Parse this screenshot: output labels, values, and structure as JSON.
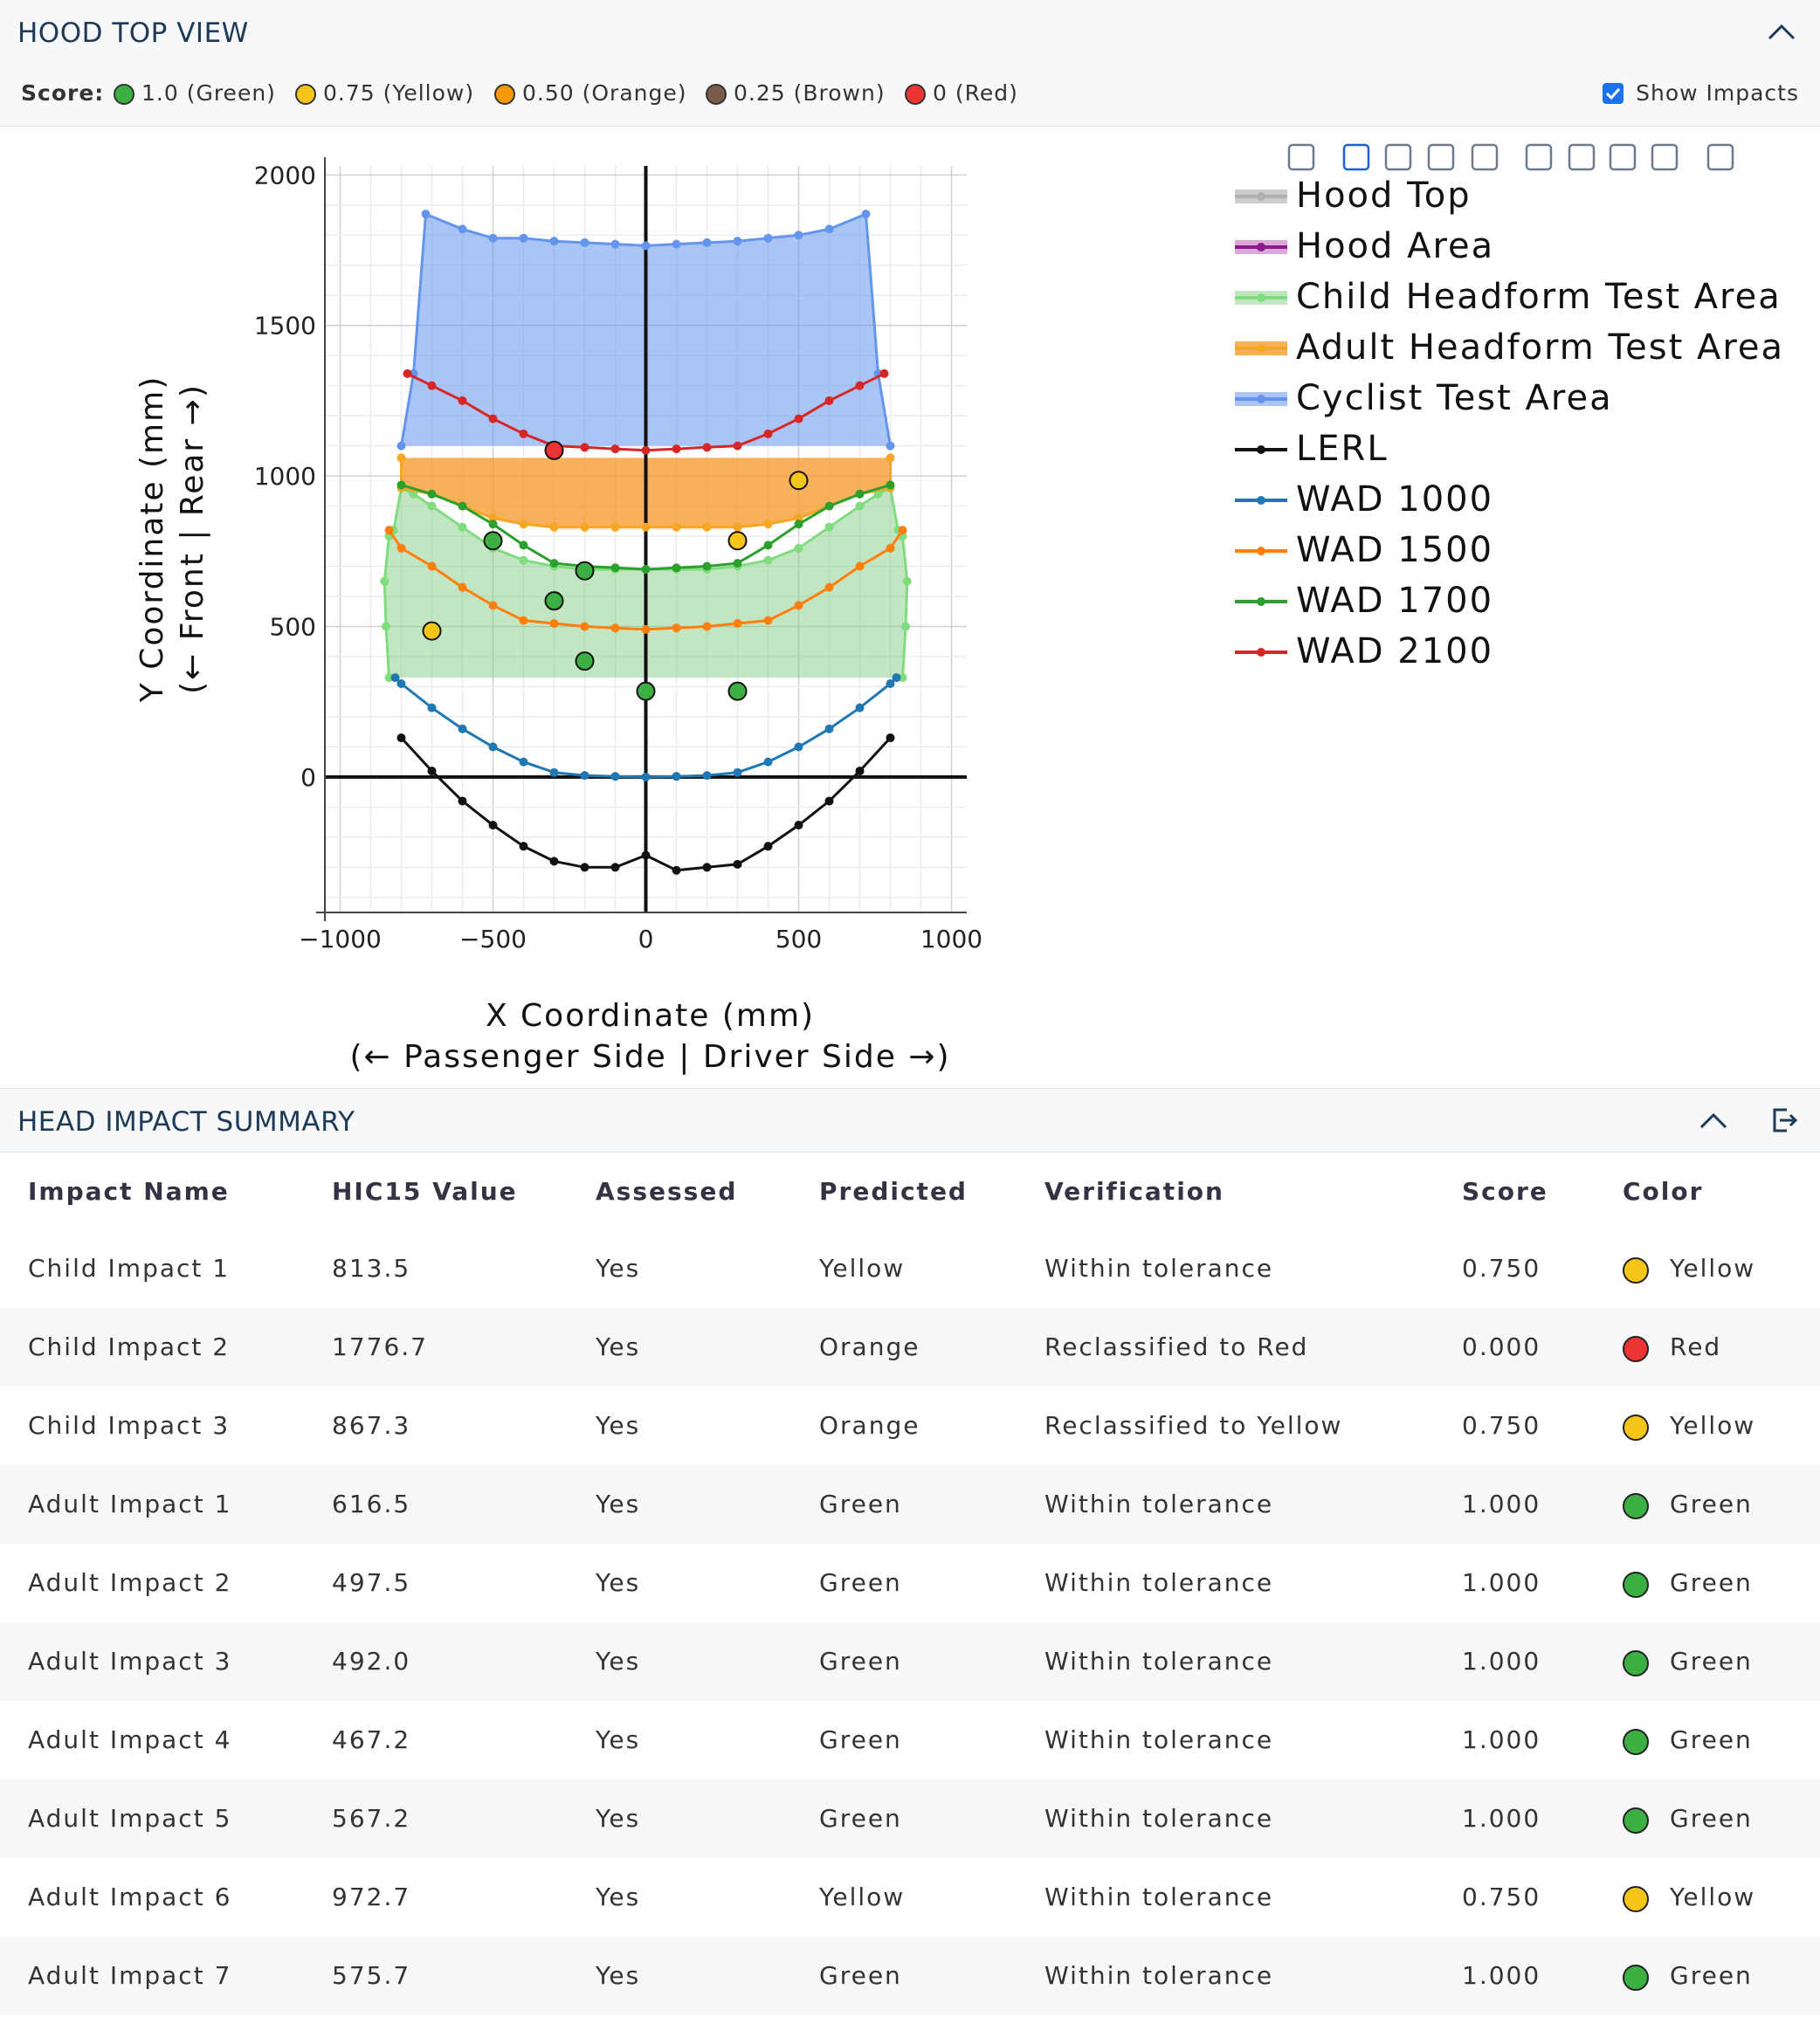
{
  "hood_panel": {
    "title": "HOOD TOP VIEW",
    "score_label": "Score:",
    "score_legend": [
      {
        "label": "1.0 (Green)",
        "color": "#3cb043"
      },
      {
        "label": "0.75 (Yellow)",
        "color": "#f5c518"
      },
      {
        "label": "0.50 (Orange)",
        "color": "#f59a0a"
      },
      {
        "label": "0.25 (Brown)",
        "color": "#7a5a48"
      },
      {
        "label": "0 (Red)",
        "color": "#ee3333"
      }
    ],
    "show_impacts_label": "Show Impacts",
    "show_impacts_checked": true
  },
  "modebar": [
    "camera-icon",
    "zoom-icon",
    "pan-icon",
    "box-select-icon",
    "lasso-icon",
    "zoom-in-icon",
    "zoom-out-icon",
    "autoscale-icon",
    "reset-axes-icon",
    "save-icon"
  ],
  "chart_data": {
    "type": "line",
    "xlabel": "X Coordinate (mm)",
    "xlabel2": "(← Passenger Side | Driver Side →)",
    "ylabel": "Y Coordinate (mm)",
    "ylabel2": "(← Front | Rear →)",
    "xlim": [
      -1050,
      1050
    ],
    "ylim": [
      -450,
      2030
    ],
    "xticks": [
      -1000,
      -500,
      0,
      500,
      1000
    ],
    "xtick_labels": [
      "−1000",
      "−500",
      "0",
      "500",
      "1000"
    ],
    "yticks": [
      0,
      500,
      1000,
      1500,
      2000
    ],
    "ytick_labels": [
      "0",
      "500",
      "1000",
      "1500",
      "2000"
    ],
    "grid": true,
    "legend_position": "top-right",
    "series": [
      {
        "name": "Hood Top",
        "color": "#b0b0b0",
        "fill": null,
        "x": [],
        "y": []
      },
      {
        "name": "Hood Area",
        "color": "#8b1a8b",
        "fill": "#d9a9d9",
        "x": [],
        "y": []
      },
      {
        "name": "Child Headform Test Area",
        "color": "#7fdc7f",
        "fill": "rgba(120,200,120,0.45)",
        "x": [
          -840,
          -850,
          -855,
          -840,
          -825,
          -800,
          -760,
          -700,
          -600,
          -500,
          -400,
          -300,
          -200,
          -100,
          0,
          100,
          200,
          300,
          400,
          500,
          600,
          700,
          760,
          800,
          825,
          840,
          855,
          850,
          840
        ],
        "y": [
          330,
          500,
          650,
          800,
          820,
          960,
          940,
          900,
          830,
          760,
          720,
          700,
          690,
          690,
          690,
          690,
          690,
          700,
          720,
          760,
          830,
          900,
          940,
          960,
          820,
          800,
          650,
          500,
          330
        ]
      },
      {
        "name": "Adult Headform Test Area",
        "color": "#f5a623",
        "fill": "rgba(245,150,35,0.75)",
        "x": [
          -800,
          -800,
          -700,
          -600,
          -500,
          -400,
          -300,
          -200,
          -100,
          0,
          100,
          200,
          300,
          400,
          500,
          600,
          700,
          800,
          800
        ],
        "y": [
          1060,
          960,
          940,
          900,
          860,
          840,
          830,
          830,
          830,
          830,
          830,
          830,
          830,
          840,
          860,
          900,
          940,
          960,
          1060
        ]
      },
      {
        "name": "Cyclist Test Area",
        "color": "#6495ed",
        "fill": "rgba(100,149,237,0.55)",
        "x": [
          -800,
          -760,
          -720,
          -600,
          -500,
          -400,
          -300,
          -200,
          -100,
          0,
          100,
          200,
          300,
          400,
          500,
          600,
          720,
          760,
          800
        ],
        "y": [
          1100,
          1340,
          1870,
          1820,
          1790,
          1790,
          1780,
          1775,
          1770,
          1765,
          1770,
          1775,
          1780,
          1790,
          1800,
          1820,
          1870,
          1340,
          1100
        ]
      },
      {
        "name": "LERL",
        "color": "#111111",
        "fill": null,
        "x": [
          -800,
          -700,
          -600,
          -500,
          -400,
          -300,
          -200,
          -100,
          0,
          100,
          200,
          300,
          400,
          500,
          600,
          700,
          800
        ],
        "y": [
          130,
          20,
          -80,
          -160,
          -230,
          -280,
          -300,
          -300,
          -260,
          -310,
          -300,
          -290,
          -230,
          -160,
          -80,
          20,
          130
        ]
      },
      {
        "name": "WAD 1000",
        "color": "#1f77b4",
        "fill": null,
        "x": [
          -820,
          -800,
          -700,
          -600,
          -500,
          -400,
          -300,
          -200,
          -100,
          0,
          100,
          200,
          300,
          400,
          500,
          600,
          700,
          800,
          820
        ],
        "y": [
          330,
          310,
          230,
          160,
          100,
          50,
          15,
          5,
          2,
          0,
          2,
          5,
          15,
          50,
          100,
          160,
          230,
          310,
          330
        ]
      },
      {
        "name": "WAD 1500",
        "color": "#ff7f0e",
        "fill": null,
        "x": [
          -840,
          -800,
          -700,
          -600,
          -500,
          -400,
          -300,
          -200,
          -100,
          0,
          100,
          200,
          300,
          400,
          500,
          600,
          700,
          800,
          840
        ],
        "y": [
          820,
          760,
          700,
          630,
          570,
          520,
          510,
          500,
          495,
          490,
          495,
          500,
          510,
          520,
          570,
          630,
          700,
          760,
          820
        ]
      },
      {
        "name": "WAD 1700",
        "color": "#2ca02c",
        "fill": null,
        "x": [
          -800,
          -700,
          -600,
          -500,
          -400,
          -300,
          -200,
          -100,
          0,
          100,
          200,
          300,
          400,
          500,
          600,
          700,
          800
        ],
        "y": [
          970,
          940,
          900,
          840,
          770,
          710,
          700,
          695,
          690,
          695,
          700,
          710,
          770,
          840,
          900,
          940,
          970
        ]
      },
      {
        "name": "WAD 2100",
        "color": "#d62728",
        "fill": null,
        "x": [
          -780,
          -700,
          -600,
          -500,
          -400,
          -300,
          -200,
          -100,
          0,
          100,
          200,
          300,
          400,
          500,
          600,
          700,
          780
        ],
        "y": [
          1340,
          1300,
          1250,
          1190,
          1140,
          1100,
          1095,
          1090,
          1085,
          1090,
          1095,
          1100,
          1140,
          1190,
          1250,
          1300,
          1340
        ]
      }
    ],
    "impacts": [
      {
        "x": -300,
        "y": 1085,
        "color": "#ee3333"
      },
      {
        "x": 500,
        "y": 985,
        "color": "#f5c518"
      },
      {
        "x": 300,
        "y": 785,
        "color": "#f5c518"
      },
      {
        "x": -500,
        "y": 785,
        "color": "#3cb043"
      },
      {
        "x": -200,
        "y": 685,
        "color": "#3cb043"
      },
      {
        "x": -300,
        "y": 585,
        "color": "#3cb043"
      },
      {
        "x": -700,
        "y": 485,
        "color": "#f5c518"
      },
      {
        "x": -200,
        "y": 385,
        "color": "#3cb043"
      },
      {
        "x": 0,
        "y": 285,
        "color": "#3cb043"
      },
      {
        "x": 300,
        "y": 285,
        "color": "#3cb043"
      }
    ]
  },
  "summary_panel": {
    "title": "HEAD IMPACT SUMMARY",
    "columns": [
      "Impact Name",
      "HIC15 Value",
      "Assessed",
      "Predicted",
      "Verification",
      "Score",
      "Color"
    ],
    "rows": [
      {
        "name": "Child Impact 1",
        "hic": "813.5",
        "assessed": "Yes",
        "predicted": "Yellow",
        "verification": "Within tolerance",
        "score": "0.750",
        "color": "Yellow",
        "hex": "#f5c518"
      },
      {
        "name": "Child Impact 2",
        "hic": "1776.7",
        "assessed": "Yes",
        "predicted": "Orange",
        "verification": "Reclassified to Red",
        "score": "0.000",
        "color": "Red",
        "hex": "#ee3333"
      },
      {
        "name": "Child Impact 3",
        "hic": "867.3",
        "assessed": "Yes",
        "predicted": "Orange",
        "verification": "Reclassified to Yellow",
        "score": "0.750",
        "color": "Yellow",
        "hex": "#f5c518"
      },
      {
        "name": "Adult Impact 1",
        "hic": "616.5",
        "assessed": "Yes",
        "predicted": "Green",
        "verification": "Within tolerance",
        "score": "1.000",
        "color": "Green",
        "hex": "#3cb043"
      },
      {
        "name": "Adult Impact 2",
        "hic": "497.5",
        "assessed": "Yes",
        "predicted": "Green",
        "verification": "Within tolerance",
        "score": "1.000",
        "color": "Green",
        "hex": "#3cb043"
      },
      {
        "name": "Adult Impact 3",
        "hic": "492.0",
        "assessed": "Yes",
        "predicted": "Green",
        "verification": "Within tolerance",
        "score": "1.000",
        "color": "Green",
        "hex": "#3cb043"
      },
      {
        "name": "Adult Impact 4",
        "hic": "467.2",
        "assessed": "Yes",
        "predicted": "Green",
        "verification": "Within tolerance",
        "score": "1.000",
        "color": "Green",
        "hex": "#3cb043"
      },
      {
        "name": "Adult Impact 5",
        "hic": "567.2",
        "assessed": "Yes",
        "predicted": "Green",
        "verification": "Within tolerance",
        "score": "1.000",
        "color": "Green",
        "hex": "#3cb043"
      },
      {
        "name": "Adult Impact 6",
        "hic": "972.7",
        "assessed": "Yes",
        "predicted": "Yellow",
        "verification": "Within tolerance",
        "score": "0.750",
        "color": "Yellow",
        "hex": "#f5c518"
      },
      {
        "name": "Adult Impact 7",
        "hic": "575.7",
        "assessed": "Yes",
        "predicted": "Green",
        "verification": "Within tolerance",
        "score": "1.000",
        "color": "Green",
        "hex": "#3cb043"
      }
    ]
  }
}
